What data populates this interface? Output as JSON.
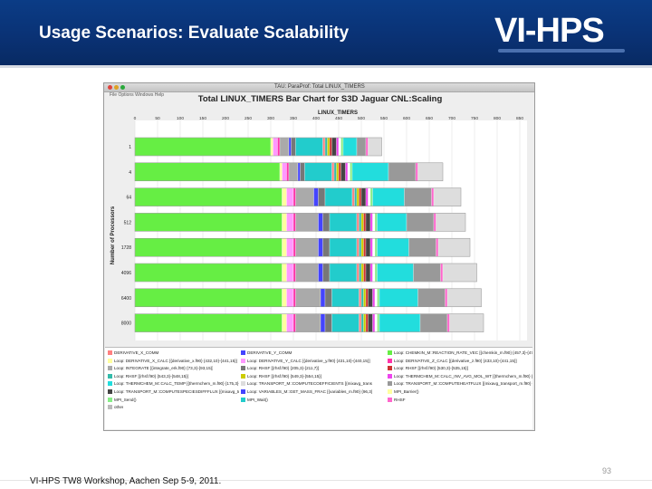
{
  "slide": {
    "title": "Usage Scenarios: Evaluate Scalability",
    "logo": "VI-HPS",
    "footer": "VI-HPS TW8 Workshop, Aachen Sep 5-9, 2011.",
    "page_number": "93"
  },
  "window": {
    "title": "TAU: ParaProf: Total LINUX_TIMERS",
    "menu": "File   Options   Windows   Help"
  },
  "chart_data": {
    "type": "bar",
    "orientation": "horizontal",
    "stacked": true,
    "title": "Total LINUX_TIMERS Bar Chart for S3D Jaguar CNL:Scaling",
    "xlabel": "LINUX_TIMERS",
    "ylabel": "Number of Processors",
    "xticks": [
      0,
      50,
      100,
      150,
      200,
      250,
      300,
      350,
      400,
      450,
      500,
      550,
      600,
      650,
      700,
      750,
      800,
      850
    ],
    "xlim": [
      0,
      850
    ],
    "categories": [
      "1",
      "4",
      "64",
      "512",
      "1728",
      "4096",
      "6400",
      "8000"
    ],
    "segment_colors": [
      "#66ee44",
      "#ffffa0",
      "#ff99ff",
      "#ff33aa",
      "#aaaaaa",
      "#4444ff",
      "#777777",
      "#22cccc",
      "#ff8080",
      "#33bbaa",
      "#cccc00",
      "#cc3333",
      "#444444",
      "#ee44ee",
      "#ffffff",
      "#88ee88",
      "#22dddd",
      "#999999",
      "#ff66cc",
      "#dddddd"
    ],
    "series": [
      {
        "processors": "1",
        "segments": [
          300,
          5,
          10,
          5,
          20,
          5,
          10,
          60,
          5,
          5,
          5,
          5,
          10,
          5,
          5,
          5,
          30,
          20,
          5,
          30
        ]
      },
      {
        "processors": "4",
        "segments": [
          320,
          5,
          10,
          5,
          20,
          5,
          10,
          60,
          5,
          5,
          5,
          5,
          10,
          5,
          5,
          5,
          80,
          60,
          5,
          55
        ]
      },
      {
        "processors": "64",
        "segments": [
          325,
          10,
          15,
          5,
          40,
          10,
          15,
          60,
          5,
          5,
          5,
          5,
          10,
          5,
          5,
          5,
          70,
          60,
          5,
          60
        ]
      },
      {
        "processors": "512",
        "segments": [
          325,
          10,
          15,
          5,
          50,
          10,
          15,
          60,
          5,
          5,
          5,
          5,
          10,
          5,
          5,
          5,
          65,
          60,
          5,
          65
        ]
      },
      {
        "processors": "1728",
        "segments": [
          325,
          10,
          15,
          5,
          50,
          10,
          15,
          60,
          5,
          5,
          5,
          5,
          10,
          5,
          5,
          5,
          70,
          60,
          5,
          70
        ]
      },
      {
        "processors": "4096",
        "segments": [
          325,
          10,
          15,
          5,
          50,
          10,
          15,
          60,
          5,
          5,
          5,
          5,
          10,
          5,
          5,
          5,
          80,
          60,
          5,
          75
        ]
      },
      {
        "processors": "6400",
        "segments": [
          325,
          10,
          15,
          5,
          55,
          10,
          15,
          60,
          5,
          5,
          5,
          5,
          10,
          5,
          5,
          5,
          85,
          60,
          5,
          75
        ]
      },
      {
        "processors": "8000",
        "segments": [
          325,
          10,
          15,
          5,
          55,
          10,
          15,
          60,
          5,
          5,
          5,
          5,
          10,
          5,
          5,
          5,
          90,
          60,
          5,
          75
        ]
      }
    ]
  },
  "legend": [
    {
      "label": "DERIVATIVE_X_COMM",
      "color": "#ff8080"
    },
    {
      "label": "DERIVATIVE_Y_COMM",
      "color": "#4444ff"
    },
    {
      "label": "Loop: CHEMKIN_M::REACTION_RATE_VEC [{chemkin_m.f90} {457,3}-{471,8}]",
      "color": "#66ee44"
    },
    {
      "label": "Loop: DERIVATIVE_X_CALC [{derivative_x.f90} {432,10}-{441,15}]",
      "color": "#ffffa0"
    },
    {
      "label": "Loop: DERIVATIVE_Y_CALC [{derivative_y.f90} {431,10}-{440,15}]",
      "color": "#ff99ff"
    },
    {
      "label": "Loop: DERIVATIVE_Z_CALC [{derivative_z.f90} {433,10}-{441,15}]",
      "color": "#ff33aa"
    },
    {
      "label": "Loop: INTEGRATE [{integrate_erk.f90} {73,3}-{93,15}]",
      "color": "#aaaaaa"
    },
    {
      "label": "Loop: RHSF [{rhsf.f90} {205,3}-{211,7}]",
      "color": "#777777"
    },
    {
      "label": "Loop: RHSF [{rhsf.f90} {530,3}-{535,15}]",
      "color": "#cc3333"
    },
    {
      "label": "Loop: RHSF [{rhsf.f90} {543,3}-{548,15}]",
      "color": "#33bbaa"
    },
    {
      "label": "Loop: RHSF [{rhsf.f90} {549,3}-{554,15}]",
      "color": "#cccc00"
    },
    {
      "label": "Loop: THERMCHEM_M::CALC_INV_AVG_MOL_WT [{thermchem_m.f90} {127,3}-{129,5}]",
      "color": "#ee44ee"
    },
    {
      "label": "Loop: THERMCHEM_M::CALC_TEMP [{thermchem_m.f90} {175,3}-{216,9}]",
      "color": "#22dddd"
    },
    {
      "label": "Loop: TRANSPORT_M::COMPUTECOEFFICIENTS [{mixavg_transport_m.f90} {492,5}-{520,9}]",
      "color": "#dddddd"
    },
    {
      "label": "Loop: TRANSPORT_M::COMPUTEHEATFLUX [{mixavg_transport_m.f90} {782,5}-{790,19}]",
      "color": "#999999"
    },
    {
      "label": "Loop: TRANSPORT_M::COMPUTESPECIESDIFFFLUX [{mixavg_transport_m.f90} {635,5}-{646,19}]",
      "color": "#444444"
    },
    {
      "label": "Loop: VARIABLES_M::GET_MASS_FRAC [{variables_m.f90} {96,3}-{98,7}]",
      "color": "#4444ff"
    },
    {
      "label": "MPI_Barrier()",
      "color": "#ffffa0"
    },
    {
      "label": "MPI_Send()",
      "color": "#88ee88"
    },
    {
      "label": "MPI_Wait()",
      "color": "#22cccc"
    },
    {
      "label": "RHSF",
      "color": "#ff66cc"
    },
    {
      "label": "other",
      "color": "#bbbbbb"
    }
  ]
}
